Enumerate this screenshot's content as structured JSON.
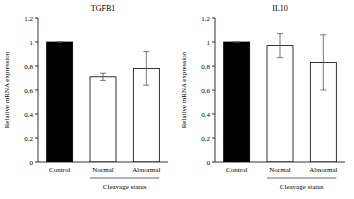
{
  "chart_data": [
    {
      "type": "bar",
      "title": "TGFB1",
      "y_label": "Relative mRNA expression",
      "x_label": "Cleavage status",
      "categories": [
        "Control",
        "Normal",
        "Abnormal"
      ],
      "values": [
        1,
        0.71,
        0.78
      ],
      "errors": [
        0,
        0.03,
        0.14
      ],
      "colors": [
        "#000000",
        "#ffffff",
        "#ffffff"
      ],
      "ylim": [
        0,
        1.2
      ],
      "yticks": [
        0,
        0.2,
        0.4,
        0.6,
        0.8,
        1,
        1.2
      ],
      "grid": false
    },
    {
      "type": "bar",
      "title": "IL10",
      "y_label": "Relative mRNA expression",
      "x_label": "Cleavage status",
      "categories": [
        "Control",
        "Normal",
        "Abnormal"
      ],
      "values": [
        1,
        0.97,
        0.83
      ],
      "errors": [
        0,
        0.1,
        0.23
      ],
      "colors": [
        "#000000",
        "#ffffff",
        "#ffffff"
      ],
      "ylim": [
        0,
        1.2
      ],
      "yticks": [
        0,
        0.2,
        0.4,
        0.6,
        0.8,
        1,
        1.2
      ],
      "grid": false
    }
  ]
}
